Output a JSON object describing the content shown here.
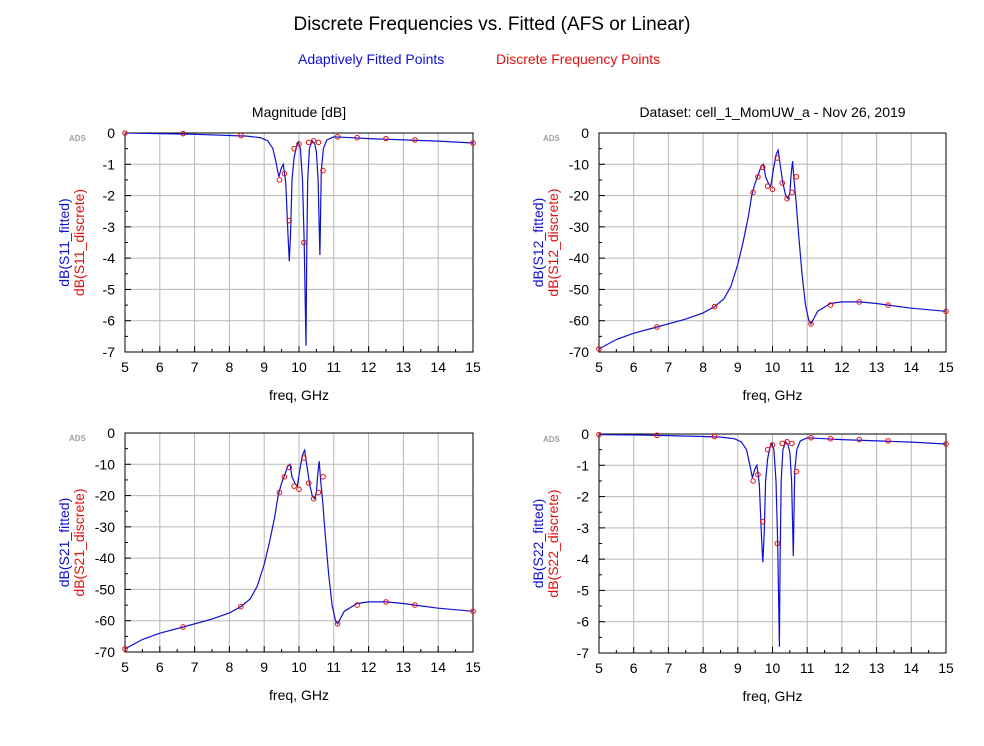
{
  "title": "Discrete Frequencies vs. Fitted (AFS or Linear)",
  "legend": {
    "fitted_label": "Adaptively Fitted Points",
    "discrete_label": "Discrete Frequency Points",
    "fitted_color": "#1010d0",
    "discrete_color": "#e01010"
  },
  "chart_data": [
    {
      "type": "line",
      "title": "Magnitude [dB]",
      "xlabel": "freq, GHz",
      "ylabel_fitted": "dB(S11_fitted)",
      "ylabel_discrete": "dB(S11_discrete)",
      "xlim": [
        5,
        15
      ],
      "ylim": [
        -7,
        0
      ],
      "xticks": [
        5,
        6,
        7,
        8,
        9,
        10,
        11,
        12,
        13,
        14,
        15
      ],
      "yticks": [
        0,
        -1,
        -2,
        -3,
        -4,
        -5,
        -6,
        -7
      ],
      "grid": true,
      "watermark": "ADS",
      "series": [
        {
          "name": "dB(S11_fitted)",
          "x": [
            5,
            6,
            7,
            8,
            8.5,
            8.9,
            9.1,
            9.25,
            9.35,
            9.42,
            9.5,
            9.55,
            9.62,
            9.68,
            9.72,
            9.76,
            9.8,
            9.86,
            9.92,
            9.98,
            10.04,
            10.1,
            10.15,
            10.2,
            10.22,
            10.25,
            10.3,
            10.38,
            10.45,
            10.5,
            10.55,
            10.6,
            10.64,
            10.7,
            10.8,
            11,
            11.5,
            12,
            13,
            14,
            15
          ],
          "y": [
            0,
            -0.02,
            -0.04,
            -0.08,
            -0.1,
            -0.15,
            -0.25,
            -0.5,
            -1.0,
            -1.4,
            -1.1,
            -1.0,
            -1.6,
            -3.2,
            -4.1,
            -3.2,
            -1.5,
            -0.8,
            -0.45,
            -0.3,
            -0.5,
            -1.5,
            -3.5,
            -6.8,
            -4.0,
            -1.5,
            -0.5,
            -0.25,
            -0.35,
            -0.6,
            -1.5,
            -3.9,
            -1.2,
            -0.5,
            -0.22,
            -0.12,
            -0.15,
            -0.18,
            -0.22,
            -0.26,
            -0.32
          ]
        },
        {
          "name": "dB(S11_discrete)",
          "x": [
            5,
            6.67,
            8.33,
            9.44,
            9.58,
            9.72,
            9.86,
            10.0,
            10.14,
            10.28,
            10.42,
            10.56,
            10.69,
            11.11,
            11.67,
            12.5,
            13.33,
            15
          ],
          "y": [
            0,
            -0.02,
            -0.08,
            -1.5,
            -1.3,
            -2.8,
            -0.5,
            -0.35,
            -3.5,
            -0.3,
            -0.25,
            -0.3,
            -1.2,
            -0.12,
            -0.15,
            -0.18,
            -0.22,
            -0.32
          ]
        }
      ]
    },
    {
      "type": "line",
      "title": "Dataset: cell_1_MomUW_a - Nov 26, 2019",
      "xlabel": "freq, GHz",
      "ylabel_fitted": "dB(S12_fitted)",
      "ylabel_discrete": "dB(S12_discrete)",
      "xlim": [
        5,
        15
      ],
      "ylim": [
        -70,
        0
      ],
      "xticks": [
        5,
        6,
        7,
        8,
        9,
        10,
        11,
        12,
        13,
        14,
        15
      ],
      "yticks": [
        0,
        -10,
        -20,
        -30,
        -40,
        -50,
        -60,
        -70
      ],
      "grid": true,
      "watermark": "ADS",
      "series": [
        {
          "name": "dB(S12_fitted)",
          "x": [
            5,
            5.5,
            6,
            6.67,
            7.5,
            8,
            8.33,
            8.6,
            8.8,
            9.0,
            9.15,
            9.3,
            9.4,
            9.5,
            9.6,
            9.68,
            9.74,
            9.8,
            9.88,
            9.95,
            10.02,
            10.1,
            10.16,
            10.22,
            10.3,
            10.38,
            10.45,
            10.5,
            10.54,
            10.58,
            10.62,
            10.68,
            10.75,
            10.85,
            10.95,
            11.05,
            11.11,
            11.3,
            11.67,
            12.0,
            12.5,
            13.0,
            13.33,
            14,
            15
          ],
          "y": [
            -69,
            -66,
            -64,
            -62,
            -59.5,
            -57.5,
            -55.5,
            -53,
            -49,
            -42,
            -35,
            -27,
            -20,
            -16,
            -13,
            -10.5,
            -10,
            -14,
            -16,
            -17,
            -12,
            -7,
            -5.5,
            -10,
            -16,
            -20,
            -21,
            -19,
            -13,
            -9,
            -15,
            -22,
            -32,
            -45,
            -55,
            -60,
            -61,
            -57,
            -54.5,
            -54,
            -54,
            -54.5,
            -55,
            -56,
            -57
          ]
        },
        {
          "name": "dB(S12_discrete)",
          "x": [
            5,
            6.67,
            8.33,
            9.44,
            9.58,
            9.72,
            9.86,
            10.0,
            10.14,
            10.28,
            10.42,
            10.56,
            10.69,
            11.11,
            11.67,
            12.5,
            13.33,
            15
          ],
          "y": [
            -69,
            -62,
            -55.5,
            -19,
            -14,
            -11,
            -17,
            -18,
            -8,
            -16,
            -21,
            -19,
            -14,
            -61,
            -55,
            -54,
            -55,
            -57
          ]
        }
      ]
    },
    {
      "type": "line",
      "title": "",
      "xlabel": "freq, GHz",
      "ylabel_fitted": "dB(S21_fitted)",
      "ylabel_discrete": "dB(S21_discrete)",
      "xlim": [
        5,
        15
      ],
      "ylim": [
        -70,
        0
      ],
      "xticks": [
        5,
        6,
        7,
        8,
        9,
        10,
        11,
        12,
        13,
        14,
        15
      ],
      "yticks": [
        0,
        -10,
        -20,
        -30,
        -40,
        -50,
        -60,
        -70
      ],
      "grid": true,
      "watermark": "ADS",
      "series": [
        {
          "name": "dB(S21_fitted)",
          "x": [
            5,
            5.5,
            6,
            6.67,
            7.5,
            8,
            8.33,
            8.6,
            8.8,
            9.0,
            9.15,
            9.3,
            9.4,
            9.5,
            9.6,
            9.68,
            9.74,
            9.8,
            9.88,
            9.95,
            10.02,
            10.1,
            10.16,
            10.22,
            10.3,
            10.38,
            10.45,
            10.5,
            10.54,
            10.58,
            10.62,
            10.68,
            10.75,
            10.85,
            10.95,
            11.05,
            11.11,
            11.3,
            11.67,
            12.0,
            12.5,
            13.0,
            13.33,
            14,
            15
          ],
          "y": [
            -69,
            -66,
            -64,
            -62,
            -59.5,
            -57.5,
            -55.5,
            -53,
            -49,
            -42,
            -35,
            -27,
            -20,
            -16,
            -13,
            -10.5,
            -10,
            -14,
            -16,
            -17,
            -12,
            -7,
            -5.5,
            -10,
            -16,
            -20,
            -21,
            -19,
            -13,
            -9,
            -15,
            -22,
            -32,
            -45,
            -55,
            -60,
            -61,
            -57,
            -54.5,
            -54,
            -54,
            -54.5,
            -55,
            -56,
            -57
          ]
        },
        {
          "name": "dB(S21_discrete)",
          "x": [
            5,
            6.67,
            8.33,
            9.44,
            9.58,
            9.72,
            9.86,
            10.0,
            10.14,
            10.28,
            10.42,
            10.56,
            10.69,
            11.11,
            11.67,
            12.5,
            13.33,
            15
          ],
          "y": [
            -69,
            -62,
            -55.5,
            -19,
            -14,
            -11,
            -17,
            -18,
            -8,
            -16,
            -21,
            -19,
            -14,
            -61,
            -55,
            -54,
            -55,
            -57
          ]
        }
      ]
    },
    {
      "type": "line",
      "title": "",
      "xlabel": "freq, GHz",
      "ylabel_fitted": "dB(S22_fitted)",
      "ylabel_discrete": "dB(S22_discrete)",
      "xlim": [
        5,
        15
      ],
      "ylim": [
        -7,
        0
      ],
      "xticks": [
        5,
        6,
        7,
        8,
        9,
        10,
        11,
        12,
        13,
        14,
        15
      ],
      "yticks": [
        0,
        -1,
        -2,
        -3,
        -4,
        -5,
        -6,
        -7
      ],
      "grid": true,
      "watermark": "ADS",
      "series": [
        {
          "name": "dB(S22_fitted)",
          "x": [
            5,
            6,
            7,
            8,
            8.5,
            8.9,
            9.1,
            9.25,
            9.35,
            9.42,
            9.5,
            9.55,
            9.62,
            9.68,
            9.72,
            9.76,
            9.8,
            9.86,
            9.92,
            9.98,
            10.04,
            10.1,
            10.15,
            10.2,
            10.22,
            10.25,
            10.3,
            10.38,
            10.45,
            10.5,
            10.55,
            10.6,
            10.64,
            10.7,
            10.8,
            11,
            11.5,
            12,
            13,
            14,
            15
          ],
          "y": [
            -0.02,
            -0.03,
            -0.05,
            -0.08,
            -0.1,
            -0.15,
            -0.25,
            -0.5,
            -1.0,
            -1.4,
            -1.1,
            -1.0,
            -1.6,
            -3.2,
            -4.1,
            -3.2,
            -1.5,
            -0.8,
            -0.45,
            -0.3,
            -0.5,
            -1.5,
            -3.5,
            -6.8,
            -4.0,
            -1.5,
            -0.5,
            -0.25,
            -0.35,
            -0.6,
            -1.5,
            -3.9,
            -1.2,
            -0.5,
            -0.22,
            -0.12,
            -0.15,
            -0.18,
            -0.22,
            -0.26,
            -0.32
          ]
        },
        {
          "name": "dB(S22_discrete)",
          "x": [
            5,
            6.67,
            8.33,
            9.44,
            9.58,
            9.72,
            9.86,
            10.0,
            10.14,
            10.28,
            10.42,
            10.56,
            10.69,
            11.11,
            11.67,
            12.5,
            13.33,
            15
          ],
          "y": [
            -0.02,
            -0.04,
            -0.08,
            -1.5,
            -1.3,
            -2.8,
            -0.5,
            -0.35,
            -3.5,
            -0.3,
            -0.25,
            -0.3,
            -1.2,
            -0.12,
            -0.15,
            -0.18,
            -0.22,
            -0.32
          ]
        }
      ]
    }
  ]
}
